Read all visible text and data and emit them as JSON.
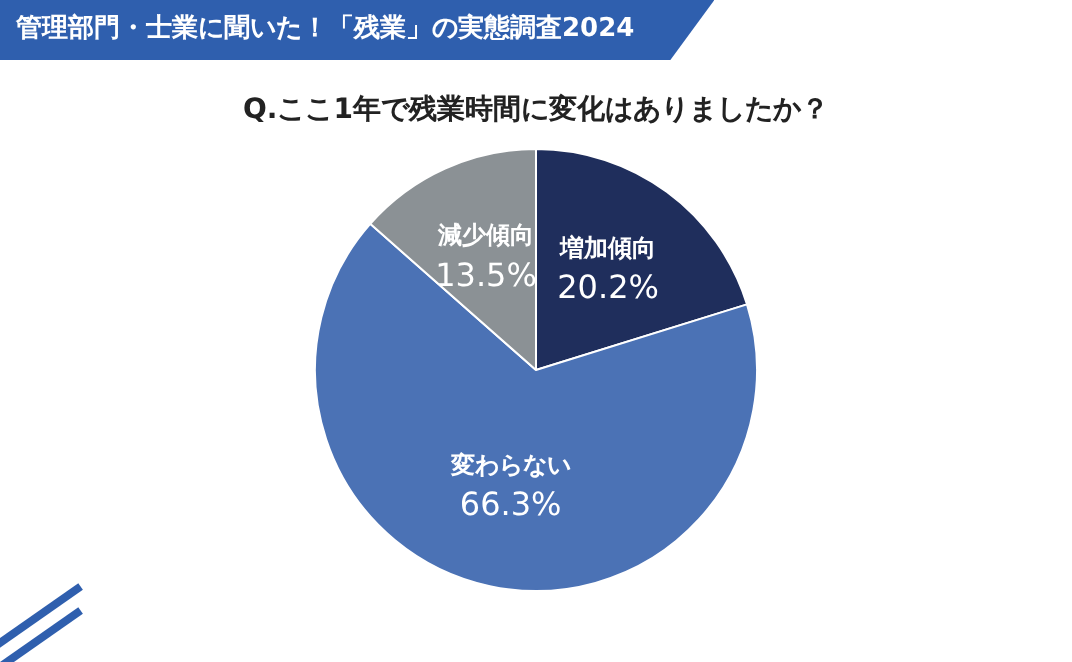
{
  "chart_data": {
    "type": "pie",
    "title": "管理部門・士業に聞いた！「残業」の実態調査2024",
    "subtitle": "Q.ここ1年で残業時間に変化はありましたか？",
    "categories": [
      "増加傾向",
      "変わらない",
      "減少傾向"
    ],
    "values": [
      20.2,
      66.3,
      13.5
    ],
    "colors": [
      "#1f2e5c",
      "#4b72b5",
      "#8b9195"
    ],
    "value_labels": [
      "20.2%",
      "66.3%",
      "13.5%"
    ],
    "legend": false
  }
}
